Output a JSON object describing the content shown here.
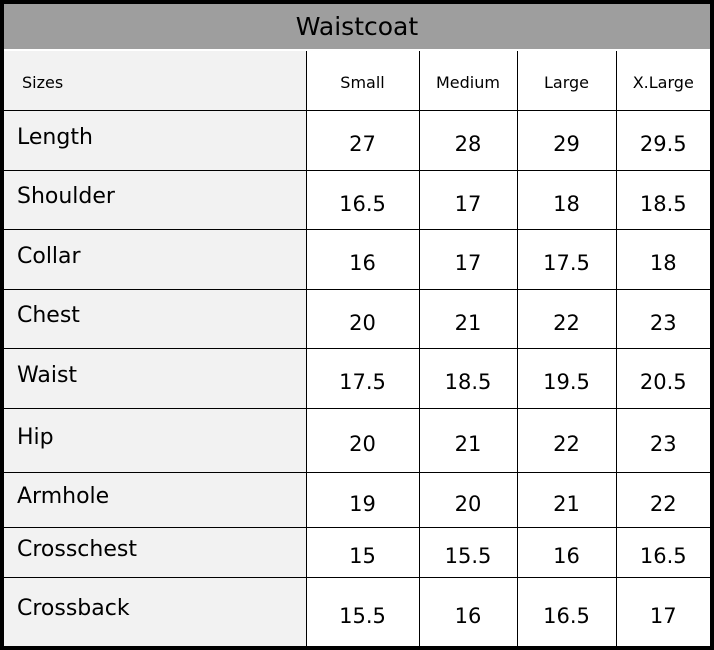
{
  "title": "Waistcoat",
  "columns": [
    "Sizes",
    "Small",
    "Medium",
    "Large",
    "X.Large"
  ],
  "rows": [
    {
      "label": "Length",
      "values": [
        "27",
        "28",
        "29",
        "29.5"
      ]
    },
    {
      "label": "Shoulder",
      "values": [
        "16.5",
        "17",
        "18",
        "18.5"
      ]
    },
    {
      "label": "Collar",
      "values": [
        "16",
        "17",
        "17.5",
        "18"
      ]
    },
    {
      "label": "Chest",
      "values": [
        "20",
        "21",
        "22",
        "23"
      ]
    },
    {
      "label": "Waist",
      "values": [
        "17.5",
        "18.5",
        "19.5",
        "20.5"
      ]
    },
    {
      "label": "Hip",
      "values": [
        "20",
        "21",
        "22",
        "23"
      ]
    },
    {
      "label": "Armhole",
      "values": [
        "19",
        "20",
        "21",
        "22"
      ]
    },
    {
      "label": "Crosschest",
      "values": [
        "15",
        "15.5",
        "16",
        "16.5"
      ]
    },
    {
      "label": "Crossback",
      "values": [
        "15.5",
        "16",
        "16.5",
        "17"
      ]
    }
  ],
  "colors": {
    "title_bg": "#9e9e9e",
    "label_bg": "#f2f2f2",
    "border": "#000000"
  }
}
